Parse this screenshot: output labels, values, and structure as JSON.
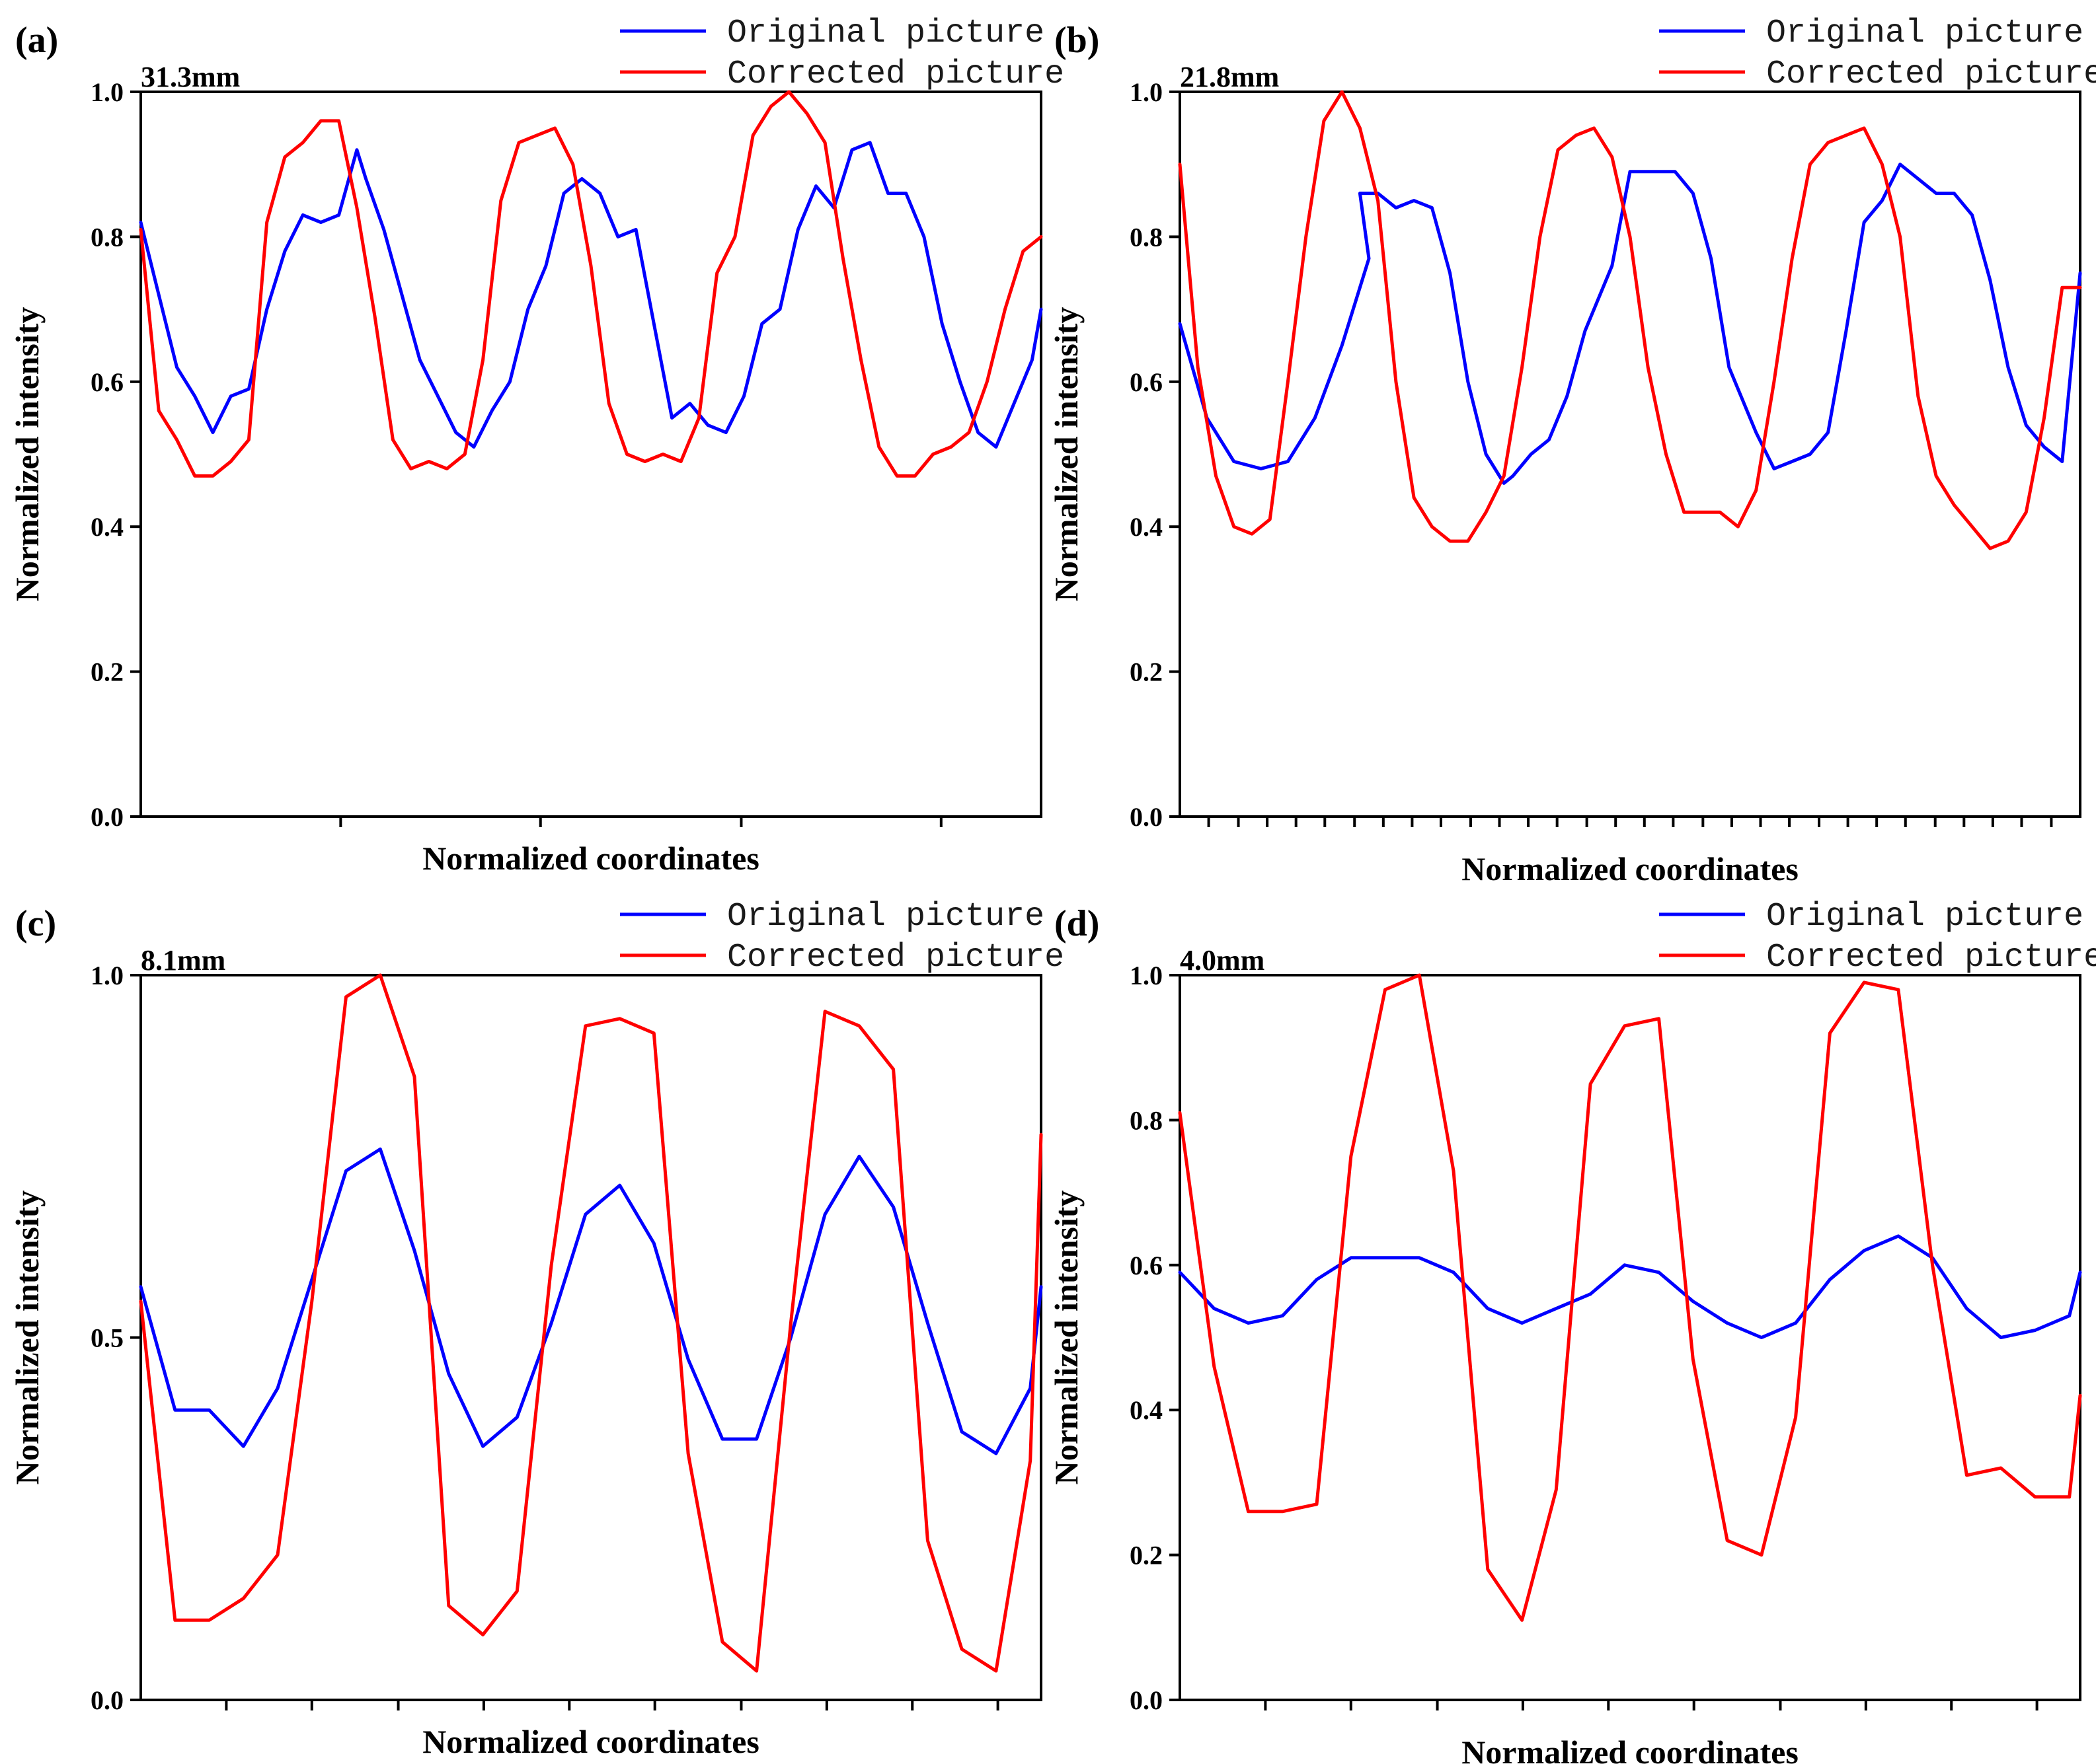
{
  "chart_data": [
    {
      "type": "line",
      "panel_label": "(a)",
      "distance_label": "31.3mm",
      "title": "",
      "xlabel": "Normalized coordinates",
      "ylabel": "Normalized intensity",
      "xlim": [
        0,
        1
      ],
      "ylim": [
        0,
        1
      ],
      "yticks": [
        0.0,
        0.2,
        0.4,
        0.6,
        0.8,
        1.0
      ],
      "ytick_labels": [
        "0.0",
        "0.2",
        "0.4",
        "0.6",
        "0.8",
        "1.0"
      ],
      "xticks": [
        0.222,
        0.444,
        0.667,
        0.889
      ],
      "legend_position": "top-right",
      "series": [
        {
          "name": "Original picture",
          "color": "#0000ff",
          "x": [
            0.0,
            0.02,
            0.04,
            0.06,
            0.08,
            0.1,
            0.12,
            0.14,
            0.16,
            0.18,
            0.2,
            0.22,
            0.24,
            0.25,
            0.27,
            0.29,
            0.31,
            0.33,
            0.35,
            0.37,
            0.39,
            0.41,
            0.43,
            0.45,
            0.47,
            0.49,
            0.51,
            0.53,
            0.55,
            0.57,
            0.59,
            0.61,
            0.63,
            0.65,
            0.67,
            0.69,
            0.71,
            0.73,
            0.75,
            0.77,
            0.79,
            0.81,
            0.83,
            0.85,
            0.87,
            0.89,
            0.91,
            0.93,
            0.95,
            0.97,
            0.99,
            1.0
          ],
          "y": [
            0.82,
            0.72,
            0.62,
            0.58,
            0.53,
            0.58,
            0.59,
            0.7,
            0.78,
            0.83,
            0.82,
            0.83,
            0.92,
            0.88,
            0.81,
            0.72,
            0.63,
            0.58,
            0.53,
            0.51,
            0.56,
            0.6,
            0.7,
            0.76,
            0.86,
            0.88,
            0.86,
            0.8,
            0.81,
            0.68,
            0.55,
            0.57,
            0.54,
            0.53,
            0.58,
            0.68,
            0.7,
            0.81,
            0.87,
            0.84,
            0.92,
            0.93,
            0.86,
            0.86,
            0.8,
            0.68,
            0.6,
            0.53,
            0.51,
            0.57,
            0.63,
            0.7
          ]
        },
        {
          "name": "Corrected picture",
          "color": "#ff0000",
          "x": [
            0.0,
            0.02,
            0.04,
            0.06,
            0.08,
            0.1,
            0.12,
            0.14,
            0.16,
            0.18,
            0.2,
            0.22,
            0.24,
            0.26,
            0.28,
            0.3,
            0.32,
            0.34,
            0.36,
            0.38,
            0.4,
            0.42,
            0.44,
            0.46,
            0.48,
            0.5,
            0.52,
            0.54,
            0.56,
            0.58,
            0.6,
            0.62,
            0.64,
            0.66,
            0.68,
            0.7,
            0.72,
            0.74,
            0.76,
            0.78,
            0.8,
            0.82,
            0.84,
            0.86,
            0.88,
            0.9,
            0.92,
            0.94,
            0.96,
            0.98,
            1.0
          ],
          "y": [
            0.81,
            0.56,
            0.52,
            0.47,
            0.47,
            0.49,
            0.52,
            0.82,
            0.91,
            0.93,
            0.96,
            0.96,
            0.84,
            0.69,
            0.52,
            0.48,
            0.49,
            0.48,
            0.5,
            0.63,
            0.85,
            0.93,
            0.94,
            0.95,
            0.9,
            0.76,
            0.57,
            0.5,
            0.49,
            0.5,
            0.49,
            0.55,
            0.75,
            0.8,
            0.94,
            0.98,
            1.0,
            0.97,
            0.93,
            0.77,
            0.63,
            0.51,
            0.47,
            0.47,
            0.5,
            0.51,
            0.53,
            0.6,
            0.7,
            0.78,
            0.8
          ]
        }
      ]
    },
    {
      "type": "line",
      "panel_label": "(b)",
      "distance_label": "21.8mm",
      "title": "",
      "xlabel": "Normalized coordinates",
      "ylabel": "Normalized intensity",
      "xlim": [
        0,
        1
      ],
      "ylim": [
        0,
        1
      ],
      "yticks": [
        0.0,
        0.2,
        0.4,
        0.6,
        0.8,
        1.0
      ],
      "ytick_labels": [
        "0.0",
        "0.2",
        "0.4",
        "0.6",
        "0.8",
        "1.0"
      ],
      "xticks": [
        0.032,
        0.065,
        0.097,
        0.129,
        0.161,
        0.194,
        0.226,
        0.258,
        0.29,
        0.323,
        0.355,
        0.387,
        0.419,
        0.452,
        0.484,
        0.516,
        0.548,
        0.581,
        0.613,
        0.645,
        0.677,
        0.71,
        0.742,
        0.774,
        0.806,
        0.839,
        0.871,
        0.903,
        0.935,
        0.968
      ],
      "legend_position": "top-right",
      "series": [
        {
          "name": "Original picture",
          "color": "#0000ff",
          "x": [
            0.0,
            0.03,
            0.06,
            0.09,
            0.12,
            0.15,
            0.18,
            0.21,
            0.2,
            0.22,
            0.24,
            0.26,
            0.28,
            0.3,
            0.32,
            0.34,
            0.36,
            0.37,
            0.39,
            0.41,
            0.43,
            0.45,
            0.48,
            0.5,
            0.53,
            0.55,
            0.57,
            0.59,
            0.61,
            0.64,
            0.66,
            0.68,
            0.7,
            0.72,
            0.74,
            0.76,
            0.78,
            0.8,
            0.82,
            0.84,
            0.86,
            0.88,
            0.9,
            0.92,
            0.94,
            0.96,
            0.98,
            1.0
          ],
          "y": [
            0.68,
            0.55,
            0.49,
            0.48,
            0.49,
            0.55,
            0.65,
            0.77,
            0.86,
            0.86,
            0.84,
            0.85,
            0.84,
            0.75,
            0.6,
            0.5,
            0.46,
            0.47,
            0.5,
            0.52,
            0.58,
            0.67,
            0.76,
            0.89,
            0.89,
            0.89,
            0.86,
            0.77,
            0.62,
            0.53,
            0.48,
            0.49,
            0.5,
            0.53,
            0.67,
            0.82,
            0.85,
            0.9,
            0.88,
            0.86,
            0.86,
            0.83,
            0.74,
            0.62,
            0.54,
            0.51,
            0.49,
            0.75
          ]
        },
        {
          "name": "Corrected picture",
          "color": "#ff0000",
          "x": [
            0.0,
            0.02,
            0.04,
            0.06,
            0.08,
            0.1,
            0.12,
            0.14,
            0.16,
            0.18,
            0.2,
            0.22,
            0.24,
            0.26,
            0.28,
            0.3,
            0.32,
            0.34,
            0.36,
            0.38,
            0.4,
            0.42,
            0.44,
            0.46,
            0.48,
            0.5,
            0.52,
            0.54,
            0.56,
            0.58,
            0.6,
            0.62,
            0.64,
            0.66,
            0.68,
            0.7,
            0.72,
            0.74,
            0.76,
            0.78,
            0.8,
            0.82,
            0.84,
            0.86,
            0.88,
            0.9,
            0.92,
            0.94,
            0.96,
            0.98,
            1.0
          ],
          "y": [
            0.9,
            0.62,
            0.47,
            0.4,
            0.39,
            0.41,
            0.6,
            0.8,
            0.96,
            1.0,
            0.95,
            0.85,
            0.6,
            0.44,
            0.4,
            0.38,
            0.38,
            0.42,
            0.47,
            0.62,
            0.8,
            0.92,
            0.94,
            0.95,
            0.91,
            0.8,
            0.62,
            0.5,
            0.42,
            0.42,
            0.42,
            0.4,
            0.45,
            0.6,
            0.77,
            0.9,
            0.93,
            0.94,
            0.95,
            0.9,
            0.8,
            0.58,
            0.47,
            0.43,
            0.4,
            0.37,
            0.38,
            0.42,
            0.55,
            0.73,
            0.73
          ]
        }
      ]
    },
    {
      "type": "line",
      "panel_label": "(c)",
      "distance_label": "8.1mm",
      "title": "",
      "xlabel": "Normalized coordinates",
      "ylabel": "Normalized intensity",
      "xlim": [
        0,
        1
      ],
      "ylim": [
        0,
        1
      ],
      "yticks": [
        0.0,
        0.5,
        1.0
      ],
      "ytick_labels": [
        "0.0",
        "0.5",
        "1.0"
      ],
      "xticks": [
        0.095,
        0.19,
        0.286,
        0.381,
        0.476,
        0.571,
        0.667,
        0.762,
        0.857,
        0.952
      ],
      "legend_position": "top-right",
      "series": [
        {
          "name": "Original picture",
          "color": "#0000ff",
          "x": [
            0.0,
            0.038,
            0.076,
            0.114,
            0.152,
            0.19,
            0.228,
            0.266,
            0.304,
            0.342,
            0.38,
            0.418,
            0.456,
            0.494,
            0.532,
            0.57,
            0.608,
            0.646,
            0.684,
            0.722,
            0.76,
            0.798,
            0.836,
            0.874,
            0.912,
            0.95,
            0.988,
            1.0
          ],
          "y": [
            0.57,
            0.4,
            0.4,
            0.35,
            0.43,
            0.58,
            0.73,
            0.76,
            0.62,
            0.45,
            0.35,
            0.39,
            0.52,
            0.67,
            0.71,
            0.63,
            0.47,
            0.36,
            0.36,
            0.5,
            0.67,
            0.75,
            0.68,
            0.52,
            0.37,
            0.34,
            0.43,
            0.57
          ]
        },
        {
          "name": "Corrected picture",
          "color": "#ff0000",
          "x": [
            0.0,
            0.038,
            0.076,
            0.114,
            0.152,
            0.19,
            0.228,
            0.266,
            0.304,
            0.342,
            0.38,
            0.418,
            0.456,
            0.494,
            0.532,
            0.57,
            0.608,
            0.646,
            0.684,
            0.722,
            0.76,
            0.798,
            0.836,
            0.874,
            0.912,
            0.95,
            0.988,
            1.0
          ],
          "y": [
            0.55,
            0.11,
            0.11,
            0.14,
            0.2,
            0.55,
            0.97,
            1.0,
            0.86,
            0.13,
            0.09,
            0.15,
            0.6,
            0.93,
            0.94,
            0.92,
            0.34,
            0.08,
            0.04,
            0.52,
            0.95,
            0.93,
            0.87,
            0.22,
            0.07,
            0.04,
            0.33,
            0.78
          ]
        }
      ]
    },
    {
      "type": "line",
      "panel_label": "(d)",
      "distance_label": "4.0mm",
      "title": "",
      "xlabel": "Normalized coordinates",
      "ylabel": "Normalized intensity",
      "xlim": [
        0,
        1
      ],
      "ylim": [
        0,
        1
      ],
      "yticks": [
        0.0,
        0.2,
        0.4,
        0.6,
        0.8,
        1.0
      ],
      "ytick_labels": [
        "0.0",
        "0.2",
        "0.4",
        "0.6",
        "0.8",
        "1.0"
      ],
      "xticks": [
        0.095,
        0.19,
        0.286,
        0.381,
        0.476,
        0.571,
        0.667,
        0.762,
        0.857,
        0.952
      ],
      "legend_position": "top-right",
      "series": [
        {
          "name": "Original picture",
          "color": "#0000ff",
          "x": [
            0.0,
            0.038,
            0.076,
            0.114,
            0.152,
            0.19,
            0.228,
            0.266,
            0.304,
            0.342,
            0.38,
            0.418,
            0.456,
            0.494,
            0.532,
            0.57,
            0.608,
            0.646,
            0.684,
            0.722,
            0.76,
            0.798,
            0.836,
            0.874,
            0.912,
            0.95,
            0.988,
            1.0
          ],
          "y": [
            0.59,
            0.54,
            0.52,
            0.53,
            0.58,
            0.61,
            0.61,
            0.61,
            0.59,
            0.54,
            0.52,
            0.54,
            0.56,
            0.6,
            0.59,
            0.55,
            0.52,
            0.5,
            0.52,
            0.58,
            0.62,
            0.64,
            0.61,
            0.54,
            0.5,
            0.51,
            0.53,
            0.59
          ]
        },
        {
          "name": "Corrected picture",
          "color": "#ff0000",
          "x": [
            0.0,
            0.038,
            0.076,
            0.114,
            0.152,
            0.19,
            0.228,
            0.266,
            0.304,
            0.342,
            0.38,
            0.418,
            0.456,
            0.494,
            0.532,
            0.57,
            0.608,
            0.646,
            0.684,
            0.722,
            0.76,
            0.798,
            0.836,
            0.874,
            0.912,
            0.95,
            0.988,
            1.0
          ],
          "y": [
            0.81,
            0.46,
            0.26,
            0.26,
            0.27,
            0.75,
            0.98,
            1.0,
            0.73,
            0.18,
            0.11,
            0.29,
            0.85,
            0.93,
            0.94,
            0.47,
            0.22,
            0.2,
            0.39,
            0.92,
            0.99,
            0.98,
            0.6,
            0.31,
            0.32,
            0.28,
            0.28,
            0.42
          ]
        }
      ]
    }
  ]
}
